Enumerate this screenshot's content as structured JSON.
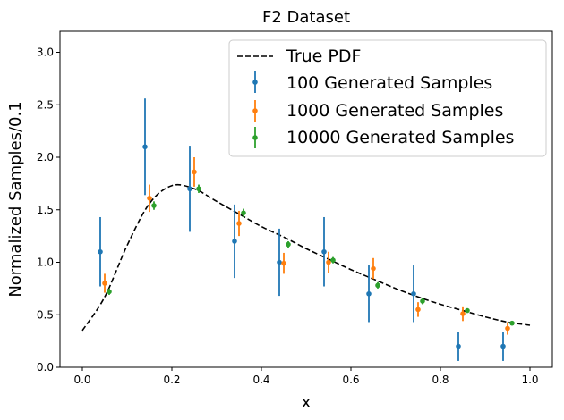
{
  "chart_data": {
    "type": "scatter",
    "title": "F2 Dataset",
    "xlabel": "x",
    "ylabel": "Normalized Samples/0.1",
    "xlim": [
      -0.05,
      1.05
    ],
    "ylim": [
      0.0,
      3.2
    ],
    "xticks": [
      0.0,
      0.2,
      0.4,
      0.6,
      0.8,
      1.0
    ],
    "xtick_labels": [
      "0.0",
      "0.2",
      "0.4",
      "0.6",
      "0.8",
      "1.0"
    ],
    "yticks": [
      0.0,
      0.5,
      1.0,
      1.5,
      2.0,
      2.5,
      3.0
    ],
    "ytick_labels": [
      "0.0",
      "0.5",
      "1.0",
      "1.5",
      "2.0",
      "2.5",
      "3.0"
    ],
    "grid": false,
    "legend_position": "top-right",
    "line": {
      "name": "True PDF",
      "color": "#000000",
      "style": "dashed",
      "x": [
        0.0,
        0.05,
        0.1,
        0.15,
        0.2,
        0.25,
        0.3,
        0.35,
        0.4,
        0.45,
        0.5,
        0.55,
        0.6,
        0.65,
        0.7,
        0.75,
        0.8,
        0.85,
        0.9,
        0.95,
        1.0
      ],
      "y": [
        0.35,
        0.67,
        1.16,
        1.56,
        1.73,
        1.7,
        1.58,
        1.46,
        1.34,
        1.24,
        1.13,
        1.03,
        0.93,
        0.84,
        0.75,
        0.67,
        0.6,
        0.54,
        0.48,
        0.43,
        0.4
      ]
    },
    "series": [
      {
        "name": "100 Generated Samples",
        "color": "#1f77b4",
        "x": [
          0.04,
          0.14,
          0.24,
          0.34,
          0.44,
          0.54,
          0.64,
          0.74,
          0.84,
          0.94
        ],
        "y": [
          1.1,
          2.1,
          1.7,
          1.2,
          1.0,
          1.1,
          0.7,
          0.7,
          0.2,
          0.2
        ],
        "err": [
          0.33,
          0.46,
          0.41,
          0.35,
          0.32,
          0.33,
          0.27,
          0.27,
          0.14,
          0.14
        ]
      },
      {
        "name": "1000 Generated Samples",
        "color": "#ff7f0e",
        "x": [
          0.05,
          0.15,
          0.25,
          0.35,
          0.45,
          0.55,
          0.65,
          0.75,
          0.85,
          0.95
        ],
        "y": [
          0.8,
          1.61,
          1.86,
          1.37,
          0.99,
          1.0,
          0.94,
          0.55,
          0.51,
          0.37
        ],
        "err": [
          0.09,
          0.13,
          0.14,
          0.12,
          0.1,
          0.1,
          0.1,
          0.07,
          0.07,
          0.06
        ]
      },
      {
        "name": "10000 Generated Samples",
        "color": "#2ca02c",
        "x": [
          0.06,
          0.16,
          0.26,
          0.36,
          0.46,
          0.56,
          0.66,
          0.76,
          0.86,
          0.96
        ],
        "y": [
          0.72,
          1.54,
          1.7,
          1.47,
          1.17,
          1.02,
          0.78,
          0.63,
          0.54,
          0.42
        ],
        "err": [
          0.03,
          0.04,
          0.04,
          0.04,
          0.03,
          0.03,
          0.03,
          0.03,
          0.02,
          0.02
        ]
      }
    ]
  }
}
